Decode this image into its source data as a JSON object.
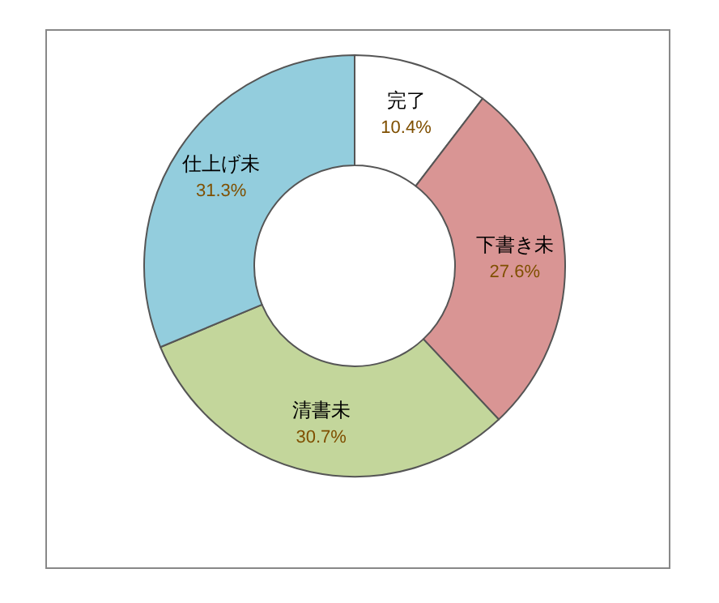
{
  "chart_data": {
    "type": "donut",
    "categories": [
      "完了",
      "下書き未",
      "清書未",
      "仕上げ未"
    ],
    "values": [
      10.4,
      27.6,
      30.7,
      31.3
    ],
    "colors": [
      "#ffffff",
      "#d99594",
      "#c3d69b",
      "#93cddd"
    ],
    "value_labels": [
      "10.4%",
      "27.6%",
      "30.7%",
      "31.3%"
    ]
  }
}
